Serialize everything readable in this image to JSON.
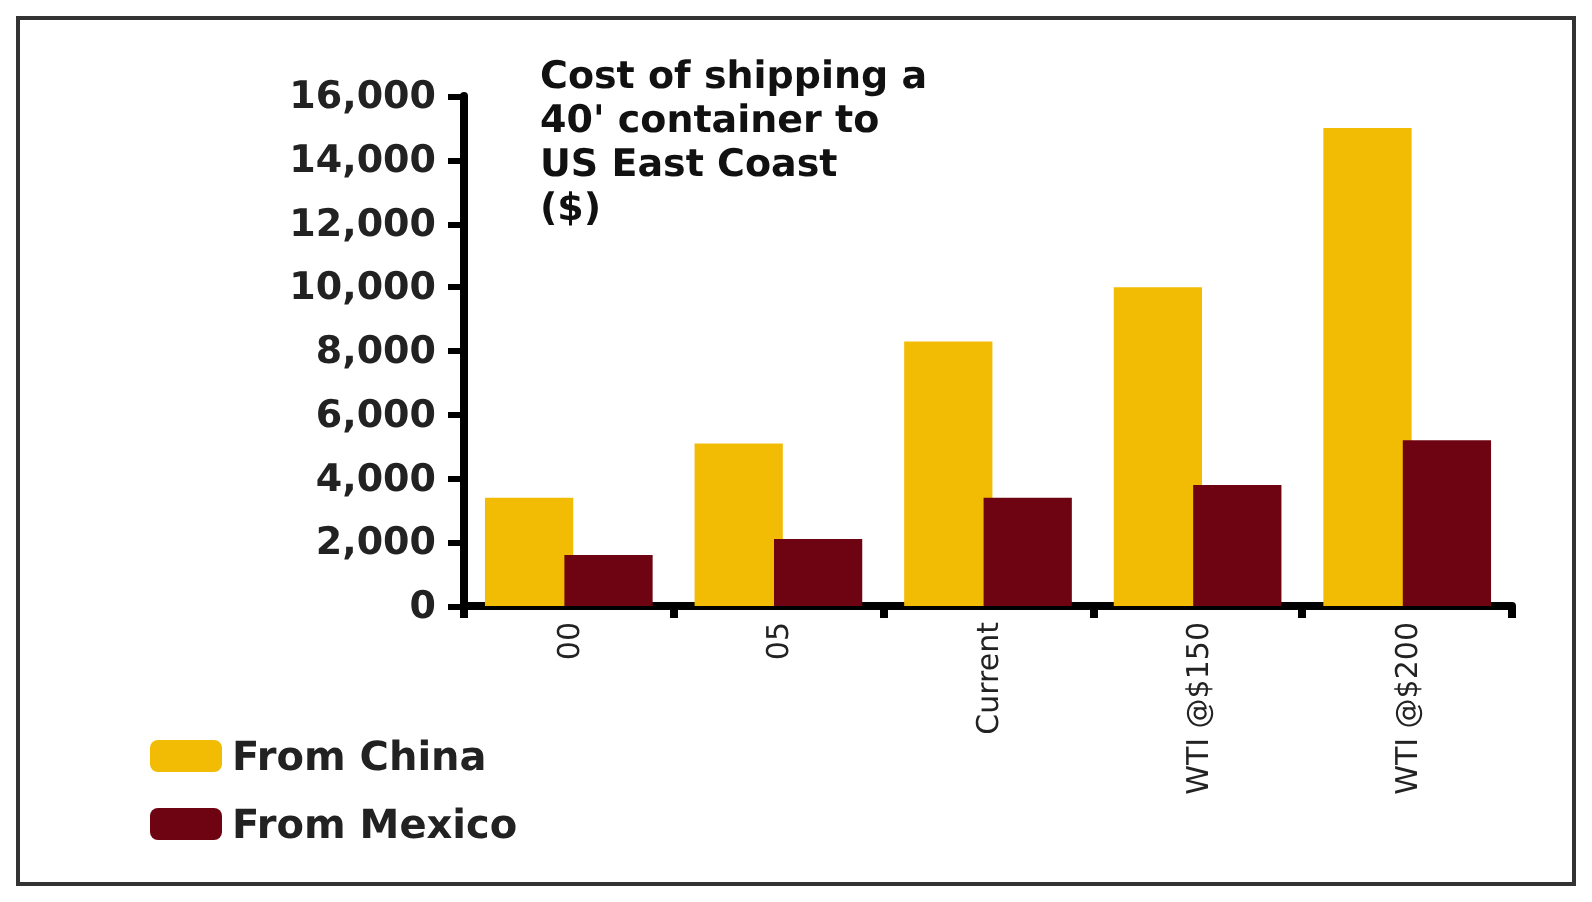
{
  "chart_data": {
    "type": "bar",
    "title": "Cost of shipping a\n40' container to\nUS East Coast\n($)",
    "categories": [
      "00",
      "05",
      "Current",
      "WTI @$150",
      "WTI @$200"
    ],
    "series": [
      {
        "name": "From China",
        "color": "#f2bc05",
        "values": [
          3400,
          5100,
          8300,
          10000,
          15000
        ]
      },
      {
        "name": "From Mexico",
        "color": "#6e0312",
        "values": [
          1600,
          2100,
          3400,
          3800,
          5200
        ]
      }
    ],
    "ylim": [
      0,
      16000
    ],
    "yticks": [
      0,
      {
        "value": 2000,
        "label": "2,000"
      },
      {
        "value": 4000,
        "label": "4,000"
      },
      {
        "value": 6000,
        "label": "6,000"
      },
      {
        "value": 8000,
        "label": "8,000"
      },
      {
        "value": 10000,
        "label": "10,000"
      },
      {
        "value": 12000,
        "label": "12,000"
      },
      {
        "value": 14000,
        "label": "14,000"
      },
      {
        "value": 16000,
        "label": "16,000"
      }
    ],
    "grid": false,
    "legend": "bottom left"
  }
}
